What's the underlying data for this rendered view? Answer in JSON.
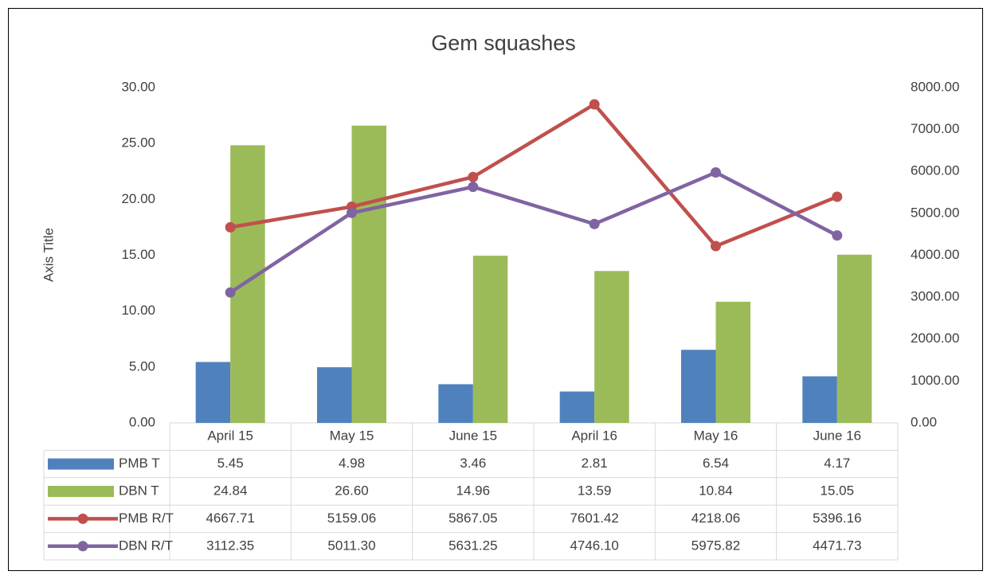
{
  "chart_data": {
    "type": "bar_line_table",
    "title": "Gem squashes",
    "y_axis_label": "Axis Title",
    "categories": [
      "April 15",
      "May 15",
      "June 15",
      "April 16",
      "May 16",
      "June 16"
    ],
    "series": [
      {
        "name": "PMB T",
        "type": "bar",
        "color": "#4f81bd",
        "axis": "y",
        "values": [
          5.45,
          4.98,
          3.46,
          2.81,
          6.54,
          4.17
        ],
        "value_labels": [
          "5.45",
          "4.98",
          "3.46",
          "2.81",
          "6.54",
          "4.17"
        ]
      },
      {
        "name": "DBN T",
        "type": "bar",
        "color": "#9bbb59",
        "axis": "y",
        "values": [
          24.84,
          26.6,
          14.96,
          13.59,
          10.84,
          15.05
        ],
        "value_labels": [
          "24.84",
          "26.60",
          "14.96",
          "13.59",
          "10.84",
          "15.05"
        ]
      },
      {
        "name": "PMB R/T",
        "type": "line",
        "color": "#c0504d",
        "axis": "y2",
        "values": [
          4667.71,
          5159.06,
          5867.05,
          7601.42,
          4218.06,
          5396.16
        ],
        "value_labels": [
          "4667.71",
          "5159.06",
          "5867.05",
          "7601.42",
          "4218.06",
          "5396.16"
        ]
      },
      {
        "name": "DBN R/T",
        "type": "line",
        "color": "#8064a2",
        "axis": "y2",
        "values": [
          3112.35,
          5011.3,
          5631.25,
          4746.1,
          5975.82,
          4471.73
        ],
        "value_labels": [
          "3112.35",
          "5011.30",
          "5631.25",
          "4746.10",
          "5975.82",
          "4471.73"
        ]
      }
    ],
    "ylim": [
      0,
      30
    ],
    "yticks": [
      {
        "value": 0,
        "label": "0.00"
      },
      {
        "value": 5,
        "label": "5.00"
      },
      {
        "value": 10,
        "label": "10.00"
      },
      {
        "value": 15,
        "label": "15.00"
      },
      {
        "value": 20,
        "label": "20.00"
      },
      {
        "value": 25,
        "label": "25.00"
      },
      {
        "value": 30,
        "label": "30.00"
      }
    ],
    "y2lim": [
      0,
      8000
    ],
    "y2ticks": [
      {
        "value": 0,
        "label": "0.00"
      },
      {
        "value": 1000,
        "label": "1000.00"
      },
      {
        "value": 2000,
        "label": "2000.00"
      },
      {
        "value": 3000,
        "label": "3000.00"
      },
      {
        "value": 4000,
        "label": "4000.00"
      },
      {
        "value": 5000,
        "label": "5000.00"
      },
      {
        "value": 6000,
        "label": "6000.00"
      },
      {
        "value": 7000,
        "label": "7000.00"
      },
      {
        "value": 8000,
        "label": "8000.00"
      }
    ],
    "grid": false
  }
}
